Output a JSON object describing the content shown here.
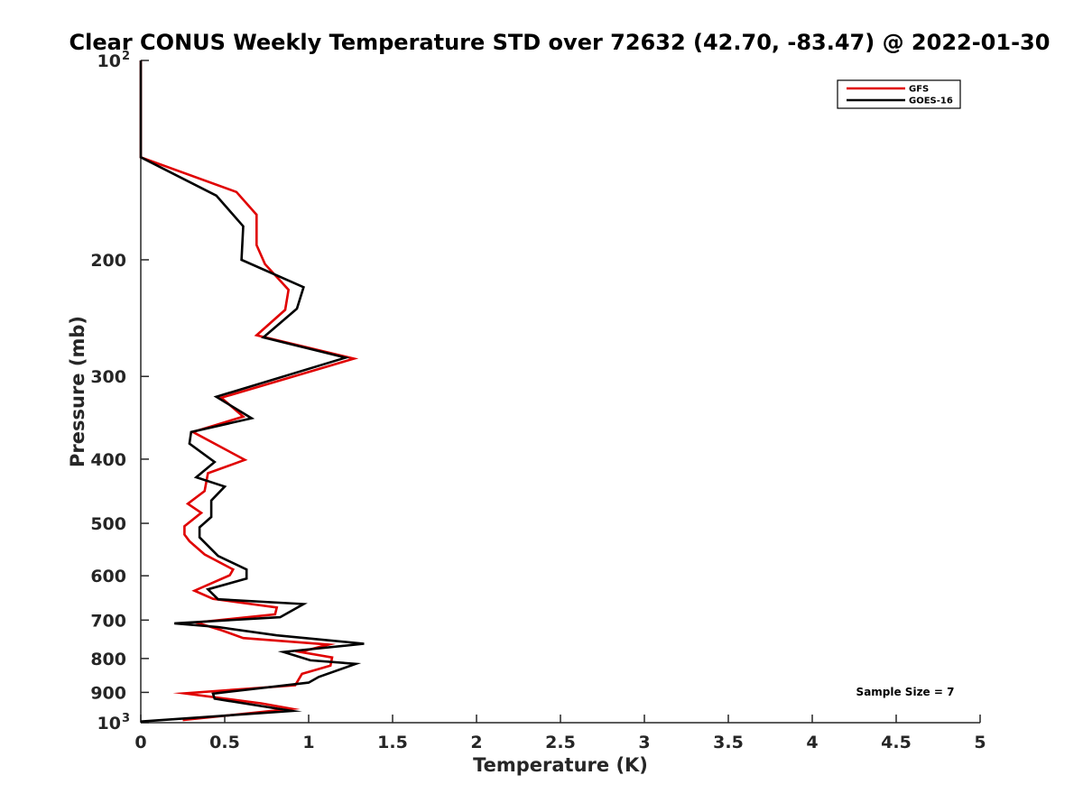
{
  "chart_data": {
    "type": "line",
    "title": "Clear CONUS Weekly Temperature STD over 72632 (42.70, -83.47) @ 2022-01-30",
    "xlabel": "Temperature (K)",
    "ylabel": "Pressure (mb)",
    "xlim": [
      0,
      5
    ],
    "ylim": [
      100,
      1000
    ],
    "y_scale": "log",
    "y_reversed": true,
    "x_ticks": [
      "0",
      "0.5",
      "1",
      "1.5",
      "2",
      "2.5",
      "3",
      "3.5",
      "4",
      "4.5",
      "5"
    ],
    "y_ticks": [
      {
        "value": 100,
        "label": "10",
        "sup": "2"
      },
      {
        "value": 200,
        "label": "200"
      },
      {
        "value": 300,
        "label": "300"
      },
      {
        "value": 400,
        "label": "400"
      },
      {
        "value": 500,
        "label": "500"
      },
      {
        "value": 600,
        "label": "600"
      },
      {
        "value": 700,
        "label": "700"
      },
      {
        "value": 800,
        "label": "800"
      },
      {
        "value": 900,
        "label": "900"
      },
      {
        "value": 1000,
        "label": "10",
        "sup": "3"
      }
    ],
    "grid": false,
    "legend_position": "top-right",
    "annotation": "Sample Size = 7",
    "series": [
      {
        "name": "GFS",
        "color": "#e00000",
        "points": [
          [
            0,
            100
          ],
          [
            0,
            140
          ],
          [
            0.57,
            158
          ],
          [
            0.69,
            171
          ],
          [
            0.69,
            190
          ],
          [
            0.74,
            203
          ],
          [
            0.88,
            222
          ],
          [
            0.86,
            238
          ],
          [
            0.69,
            260
          ],
          [
            1.27,
            282
          ],
          [
            0.48,
            323
          ],
          [
            0.61,
            345
          ],
          [
            0.31,
            364
          ],
          [
            0.62,
            401
          ],
          [
            0.4,
            420
          ],
          [
            0.38,
            447
          ],
          [
            0.28,
            467
          ],
          [
            0.36,
            482
          ],
          [
            0.26,
            505
          ],
          [
            0.26,
            520
          ],
          [
            0.29,
            532
          ],
          [
            0.38,
            557
          ],
          [
            0.55,
            587
          ],
          [
            0.53,
            599
          ],
          [
            0.32,
            632
          ],
          [
            0.43,
            650
          ],
          [
            0.81,
            670
          ],
          [
            0.8,
            686
          ],
          [
            0.33,
            706
          ],
          [
            0.48,
            725
          ],
          [
            0.61,
            745
          ],
          [
            1.12,
            762
          ],
          [
            0.95,
            782
          ],
          [
            1.14,
            797
          ],
          [
            1.13,
            820
          ],
          [
            0.96,
            844
          ],
          [
            0.92,
            878
          ],
          [
            0.26,
            903
          ],
          [
            0.72,
            935
          ],
          [
            0.9,
            953
          ],
          [
            0.25,
            991
          ]
        ]
      },
      {
        "name": "GOES-16",
        "color": "#000000",
        "points": [
          [
            0,
            100
          ],
          [
            0,
            140
          ],
          [
            0.45,
            160
          ],
          [
            0.61,
            178
          ],
          [
            0.6,
            200
          ],
          [
            0.97,
            220
          ],
          [
            0.93,
            237
          ],
          [
            0.73,
            262
          ],
          [
            1.22,
            281
          ],
          [
            0.45,
            322
          ],
          [
            0.66,
            347
          ],
          [
            0.3,
            364
          ],
          [
            0.29,
            379
          ],
          [
            0.44,
            404
          ],
          [
            0.33,
            426
          ],
          [
            0.5,
            440
          ],
          [
            0.42,
            462
          ],
          [
            0.42,
            489
          ],
          [
            0.35,
            507
          ],
          [
            0.35,
            525
          ],
          [
            0.46,
            560
          ],
          [
            0.63,
            587
          ],
          [
            0.63,
            606
          ],
          [
            0.4,
            629
          ],
          [
            0.46,
            651
          ],
          [
            0.97,
            662
          ],
          [
            0.83,
            693
          ],
          [
            0.2,
            708
          ],
          [
            0.46,
            717
          ],
          [
            0.81,
            738
          ],
          [
            1.33,
            760
          ],
          [
            0.85,
            782
          ],
          [
            1.01,
            805
          ],
          [
            1.28,
            815
          ],
          [
            1.06,
            853
          ],
          [
            1.0,
            870
          ],
          [
            0.43,
            904
          ],
          [
            0.44,
            920
          ],
          [
            0.9,
            960
          ],
          [
            0,
            996
          ]
        ]
      }
    ]
  }
}
